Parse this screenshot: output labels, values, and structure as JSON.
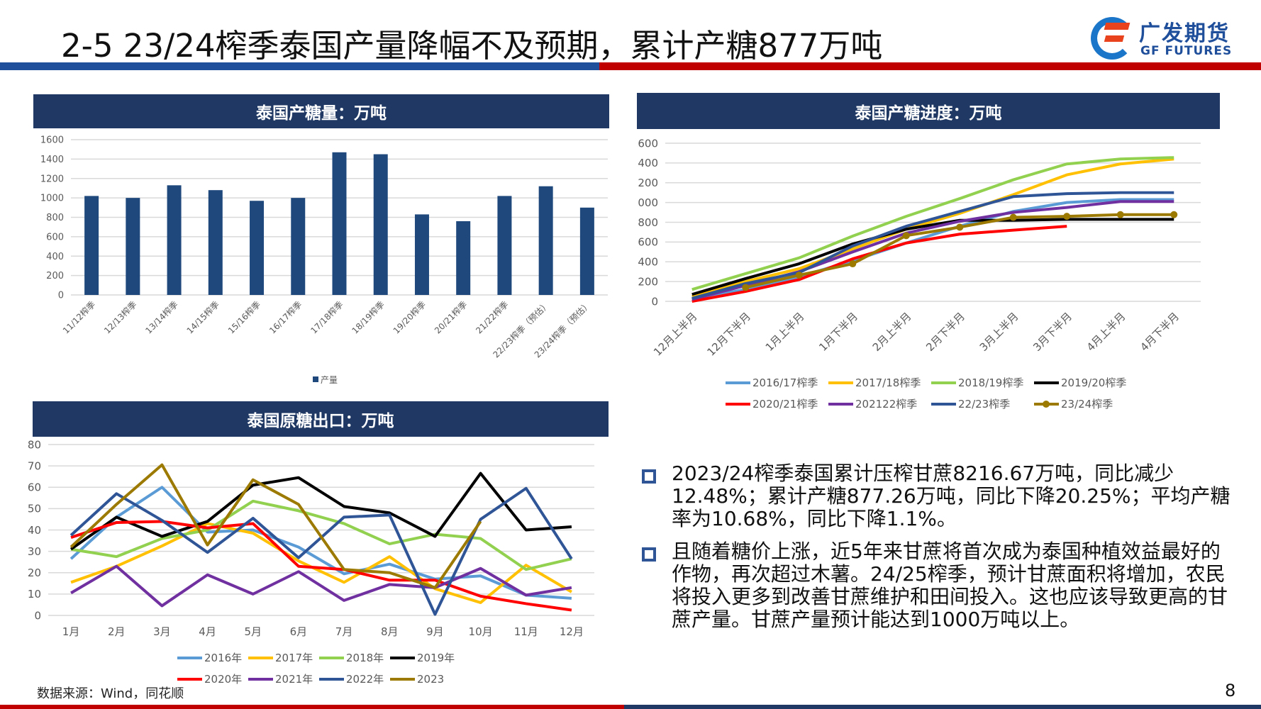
{
  "header": {
    "title": "2-5 23/24榨季泰国产量降幅不及预期，累计产糖877万吨",
    "logo_cn": "广发期货",
    "logo_en": "GF FUTURES"
  },
  "colors": {
    "navy": "#1f3864",
    "bar": "#1f497d",
    "red": "#c00000",
    "blue": "#1f4e9a"
  },
  "chart_data": [
    {
      "id": "production",
      "type": "bar",
      "title": "泰国产糖量：万吨",
      "categories": [
        "11/12榨季",
        "12/13榨季",
        "13/14榨季",
        "14/15榨季",
        "15/16榨季",
        "16/17榨季",
        "17/18榨季",
        "18/19榨季",
        "19/20榨季",
        "20/21榨季",
        "21/22榨季",
        "22/23榨季（预估）",
        "23/24榨季（预估）"
      ],
      "series": [
        {
          "name": "产量",
          "color": "#1f497d",
          "values": [
            1020,
            1000,
            1130,
            1080,
            970,
            1000,
            1470,
            1450,
            830,
            760,
            1020,
            1120,
            900
          ]
        }
      ],
      "ylim": [
        0,
        1600
      ],
      "yticks": [
        0,
        200,
        400,
        600,
        800,
        1000,
        1200,
        1400,
        1600
      ],
      "legend": "bottom",
      "grid": true
    },
    {
      "id": "progress",
      "type": "line",
      "title": "泰国产糖进度：万吨",
      "categories": [
        "12月上半月",
        "12月下半月",
        "1月上半月",
        "1月下半月",
        "2月上半月",
        "2月下半月",
        "3月上半月",
        "3月下半月",
        "4月上半月",
        "4月下半月"
      ],
      "series": [
        {
          "name": "2016/17榨季",
          "color": "#5b9bd5",
          "values": [
            20,
            120,
            250,
            410,
            590,
            760,
            910,
            1000,
            1030,
            1030
          ]
        },
        {
          "name": "2017/18榨季",
          "color": "#ffc000",
          "values": [
            50,
            200,
            330,
            530,
            730,
            890,
            1080,
            1280,
            1390,
            1440
          ]
        },
        {
          "name": "2018/19榨季",
          "color": "#92d050",
          "values": [
            120,
            280,
            440,
            660,
            860,
            1040,
            1230,
            1390,
            1440,
            1455
          ]
        },
        {
          "name": "2019/20榨季",
          "color": "#000000",
          "values": [
            70,
            230,
            380,
            580,
            730,
            820,
            820,
            830,
            830,
            830
          ]
        },
        {
          "name": "2020/21榨季",
          "color": "#ff0000",
          "values": [
            0,
            100,
            220,
            430,
            590,
            680,
            720,
            760,
            null,
            null
          ]
        },
        {
          "name": "202122榨季",
          "color": "#7030a0",
          "values": [
            20,
            160,
            300,
            500,
            690,
            810,
            900,
            950,
            1010,
            1010
          ]
        },
        {
          "name": "22/23榨季",
          "color": "#2f5597",
          "values": [
            30,
            180,
            290,
            560,
            760,
            910,
            1060,
            1090,
            1100,
            1100
          ]
        },
        {
          "name": "23/24榨季",
          "color": "#9c7a00",
          "marker": true,
          "values": [
            null,
            140,
            265,
            380,
            665,
            750,
            850,
            860,
            877,
            877
          ]
        }
      ],
      "ylim": [
        0,
        1600
      ],
      "yticks": [
        0,
        200,
        400,
        600,
        800,
        1000,
        1200,
        1400,
        1600
      ],
      "legend": "bottom",
      "grid": true
    },
    {
      "id": "exports",
      "type": "line",
      "title": "泰国原糖出口：万吨",
      "categories": [
        "1月",
        "2月",
        "3月",
        "4月",
        "5月",
        "6月",
        "7月",
        "8月",
        "9月",
        "10月",
        "11月",
        "12月"
      ],
      "series": [
        {
          "name": "2016年",
          "color": "#5b9bd5",
          "values": [
            26.5,
            46,
            60,
            39,
            40,
            32,
            19.5,
            24,
            17,
            18.5,
            9.5,
            8
          ]
        },
        {
          "name": "2017年",
          "color": "#ffc000",
          "values": [
            15.5,
            23,
            32.5,
            43,
            38.5,
            25.5,
            15.5,
            27.5,
            12.5,
            6,
            23.5,
            11
          ]
        },
        {
          "name": "2018年",
          "color": "#92d050",
          "values": [
            31,
            27.5,
            36,
            40,
            53.5,
            49,
            43,
            33.5,
            38,
            36,
            21.5,
            26.5
          ]
        },
        {
          "name": "2019年",
          "color": "#000000",
          "values": [
            31,
            46,
            37,
            44,
            61,
            64.5,
            51,
            48,
            37,
            66.5,
            40,
            41.5
          ]
        },
        {
          "name": "2020年",
          "color": "#ff0000",
          "values": [
            36.5,
            43.5,
            44,
            41,
            43,
            23,
            21.5,
            16.5,
            16.5,
            9,
            5.5,
            2.5
          ]
        },
        {
          "name": "2021年",
          "color": "#7030a0",
          "values": [
            10.5,
            23,
            4.5,
            19,
            10,
            20.5,
            7,
            14.5,
            13,
            22,
            9.5,
            13
          ]
        },
        {
          "name": "2022年",
          "color": "#2f5597",
          "values": [
            37.5,
            57,
            44.5,
            29.5,
            45.5,
            27,
            46,
            47,
            0.5,
            45,
            59.5,
            26.5
          ]
        },
        {
          "name": "2023",
          "color": "#9c7a00",
          "values": [
            32,
            52,
            70.5,
            33,
            63.5,
            52,
            21.5,
            20,
            13,
            44,
            null,
            null
          ]
        }
      ],
      "ylim": [
        0,
        80
      ],
      "yticks": [
        0,
        10,
        20,
        30,
        40,
        50,
        60,
        70,
        80
      ],
      "legend": "bottom",
      "grid": true
    }
  ],
  "bullets": [
    "2023/24榨季泰国累计压榨甘蔗8216.67万吨，同比减少12.48%；累计产糖877.26万吨，同比下降20.25%；平均产糖率为10.68%，同比下降1.1%。",
    "且随着糖价上涨，近5年来甘蔗将首次成为泰国种植效益最好的作物，再次超过木薯。24/25榨季，预计甘蔗面积将增加，农民将投入更多到改善甘蔗维护和田间投入。这也应该导致更高的甘蔗产量。甘蔗产量预计能达到1000万吨以上。"
  ],
  "source": "数据来源：Wind，同花顺",
  "page_number": "8"
}
